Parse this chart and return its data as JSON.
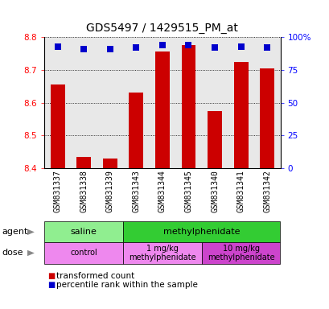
{
  "title": "GDS5497 / 1429515_PM_at",
  "samples": [
    "GSM831337",
    "GSM831338",
    "GSM831339",
    "GSM831343",
    "GSM831344",
    "GSM831345",
    "GSM831340",
    "GSM831341",
    "GSM831342"
  ],
  "bar_values": [
    8.655,
    8.435,
    8.43,
    8.63,
    8.755,
    8.775,
    8.575,
    8.725,
    8.705
  ],
  "percentile_values": [
    93,
    91,
    91,
    92,
    94,
    94,
    92,
    93,
    92
  ],
  "bar_bottom": 8.4,
  "ylim_left": [
    8.4,
    8.8
  ],
  "ylim_right": [
    0,
    100
  ],
  "yticks_left": [
    8.4,
    8.5,
    8.6,
    8.7,
    8.8
  ],
  "yticks_right": [
    0,
    25,
    50,
    75,
    100
  ],
  "ytick_labels_right": [
    "0",
    "25",
    "50",
    "75",
    "100%"
  ],
  "bar_color": "#cc0000",
  "dot_color": "#0000cc",
  "agent_groups": [
    {
      "label": "saline",
      "start": 0,
      "end": 3,
      "color": "#90ee90"
    },
    {
      "label": "methylphenidate",
      "start": 3,
      "end": 9,
      "color": "#33cc33"
    }
  ],
  "dose_groups": [
    {
      "label": "control",
      "start": 0,
      "end": 3,
      "color": "#ee88ee"
    },
    {
      "label": "1 mg/kg\nmethylphenidate",
      "start": 3,
      "end": 6,
      "color": "#ee88ee"
    },
    {
      "label": "10 mg/kg\nmethylphenidate",
      "start": 6,
      "end": 9,
      "color": "#cc44cc"
    }
  ],
  "bar_width": 0.55,
  "dot_size": 40,
  "background_color": "#ffffff",
  "plot_bg_color": "#e8e8e8",
  "title_fontsize": 10,
  "label_fontsize": 8,
  "tick_fontsize": 7.5,
  "row_label_fontsize": 8,
  "legend_fontsize": 7.5
}
